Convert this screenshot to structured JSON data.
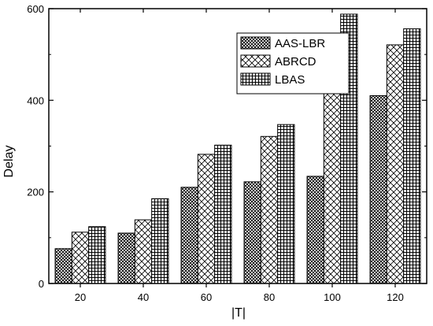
{
  "chart_data": {
    "type": "bar",
    "title": "",
    "xlabel": "|T|",
    "ylabel": "Delay",
    "categories": [
      "20",
      "40",
      "60",
      "80",
      "100",
      "120"
    ],
    "ylim": [
      0,
      600
    ],
    "yticks": [
      0,
      200,
      400,
      600
    ],
    "grid": false,
    "legend_position": "top-right",
    "series": [
      {
        "name": "AAS-LBR",
        "pattern": "dense-crosshatch",
        "values": [
          76,
          110,
          210,
          222,
          234,
          410
        ]
      },
      {
        "name": "ABRCD",
        "pattern": "diagonal-crosshatch",
        "values": [
          112,
          139,
          282,
          321,
          450,
          521
        ]
      },
      {
        "name": "LBAS",
        "pattern": "grid",
        "values": [
          124,
          185,
          302,
          347,
          588,
          556
        ]
      }
    ]
  }
}
